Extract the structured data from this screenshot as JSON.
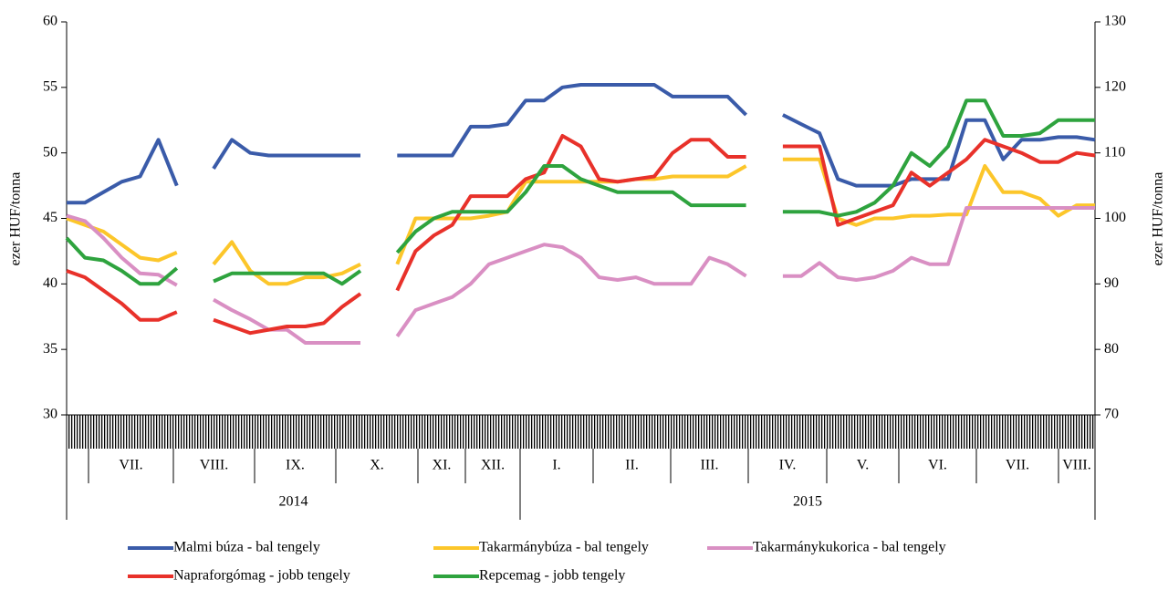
{
  "chart_data": {
    "type": "line",
    "y_label": "ezer HUF/tonna",
    "y2_label": "ezer HUF/tonna",
    "ylim": [
      30,
      60
    ],
    "yticks": [
      30,
      35,
      40,
      45,
      50,
      55,
      60
    ],
    "y2lim": [
      70,
      130
    ],
    "y2ticks": [
      70,
      80,
      90,
      100,
      110,
      120,
      130
    ],
    "months": [
      "VII.",
      "VIII.",
      "IX.",
      "X.",
      "XI.",
      "XII.",
      "I.",
      "II.",
      "III.",
      "IV.",
      "V.",
      "VI.",
      "VII.",
      "VIII."
    ],
    "years": [
      "2014",
      "2015"
    ],
    "series": [
      {
        "name": "Malmi búza - bal tengely",
        "color": "#3a5ba9",
        "values": [
          46.2,
          46.2,
          47,
          47.8,
          48.2,
          51,
          47.5,
          null,
          48.8,
          51,
          50,
          49.8,
          49.8,
          49.8,
          49.8,
          49.8,
          49.8,
          null,
          49.8,
          49.8,
          49.8,
          49.8,
          52,
          52,
          52.2,
          54,
          54,
          55,
          55.2,
          55.2,
          55.2,
          55.2,
          55.2,
          54.3,
          54.3,
          54.3,
          54.3,
          52.9,
          null,
          52.9,
          52.2,
          51.5,
          48,
          47.5,
          47.5,
          47.5,
          48,
          48,
          48,
          52.5,
          52.5,
          49.5,
          51,
          51,
          51.2,
          51.2,
          51
        ]
      },
      {
        "name": "Takarmánybúza - bal tengely",
        "color": "#fcc62a",
        "values": [
          45,
          44.5,
          44,
          43,
          42,
          41.8,
          42.4,
          null,
          41.5,
          43.2,
          41,
          40,
          40,
          40.5,
          40.5,
          40.8,
          41.5,
          null,
          41.5,
          45,
          45,
          45,
          45,
          45.2,
          45.5,
          47.8,
          47.8,
          47.8,
          47.8,
          47.8,
          47.8,
          48,
          48,
          48.2,
          48.2,
          48.2,
          48.2,
          49,
          null,
          49.5,
          49.5,
          49.5,
          45,
          44.5,
          45,
          45,
          45.2,
          45.2,
          45.3,
          45.3,
          49,
          47,
          47,
          46.5,
          45.2,
          46,
          46
        ]
      },
      {
        "name": "Takarmánykukorica - bal tengely",
        "color": "#d98fc3",
        "values": [
          45.2,
          44.8,
          43.5,
          42,
          40.8,
          40.7,
          39.9,
          null,
          38.8,
          38,
          37.3,
          36.5,
          36.5,
          35.5,
          35.5,
          35.5,
          35.5,
          null,
          36,
          38,
          38.5,
          39,
          40,
          41.5,
          42,
          42.5,
          43,
          42.8,
          42,
          40.5,
          40.3,
          40.5,
          40,
          40,
          40,
          42,
          41.5,
          40.6,
          null,
          40.6,
          40.6,
          41.6,
          40.5,
          40.3,
          40.5,
          41,
          42,
          41.5,
          41.5,
          45.8,
          45.8,
          45.8,
          45.8,
          45.8,
          45.8,
          45.8,
          45.8
        ]
      },
      {
        "name": "Napraforgómag - jobb tengely",
        "color": "#e8312a",
        "axis": "y2",
        "values": [
          92,
          91,
          89,
          87,
          84.5,
          84.5,
          85.7,
          null,
          84.5,
          83.5,
          82.5,
          83,
          83.5,
          83.5,
          84,
          86.5,
          88.5,
          null,
          89,
          95,
          97.4,
          99,
          103.4,
          103.4,
          103.4,
          106,
          107,
          112.6,
          111,
          106,
          105.6,
          106,
          106.4,
          110,
          112,
          112,
          109.4,
          109.4,
          null,
          111,
          111,
          111,
          99,
          100,
          101,
          102,
          107,
          105,
          107,
          109,
          112,
          111,
          110,
          108.6,
          108.6,
          110,
          109.6
        ]
      },
      {
        "name": "Repcemag - jobb tengely",
        "color": "#2ea33e",
        "axis": "y2",
        "values": [
          97,
          94,
          93.6,
          92,
          90,
          90,
          92.4,
          null,
          90.4,
          91.6,
          91.6,
          91.6,
          91.6,
          91.6,
          91.6,
          90,
          92,
          null,
          94.8,
          98,
          100,
          101,
          101,
          101,
          101,
          104,
          108,
          108,
          106,
          105,
          104,
          104,
          104,
          104,
          102,
          102,
          102,
          102,
          null,
          101,
          101,
          101,
          100.4,
          101,
          102.4,
          105,
          110,
          108,
          111,
          118,
          118,
          112.6,
          112.6,
          113,
          115,
          115,
          115
        ]
      }
    ]
  }
}
